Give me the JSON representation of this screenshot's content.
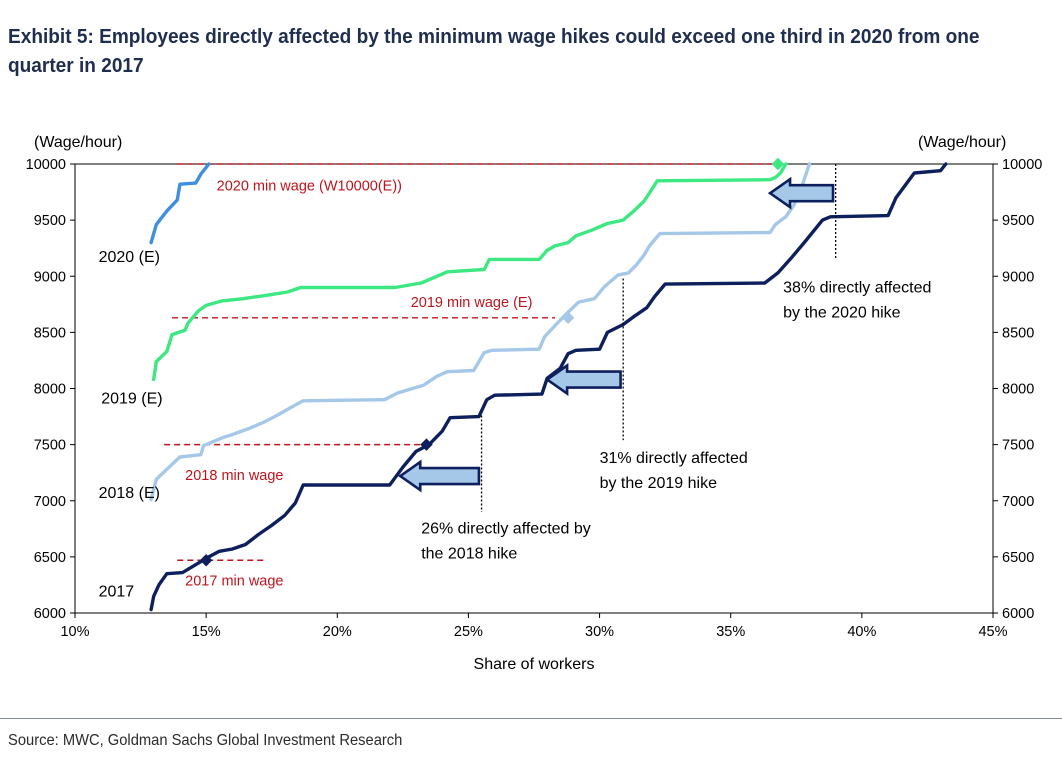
{
  "title": "Exhibit 5: Employees directly affected by the minimum wage hikes could exceed one third in 2020 from one quarter in 2017",
  "source": "Source: MWC, Goldman Sachs Global Investment Research",
  "chart_data": {
    "type": "line",
    "xlabel": "Share of workers",
    "y_unit_left": "(Wage/hour)",
    "y_unit_right": "(Wage/hour)",
    "xlim": [
      10,
      45
    ],
    "ylim": [
      6000,
      10000
    ],
    "x_ticks": [
      10,
      15,
      20,
      25,
      30,
      35,
      40,
      45
    ],
    "x_tick_labels": [
      "10%",
      "15%",
      "20%",
      "25%",
      "30%",
      "35%",
      "40%",
      "45%"
    ],
    "y_ticks": [
      6000,
      6500,
      7000,
      7500,
      8000,
      8500,
      9000,
      9500,
      10000
    ],
    "y_tick_labels": [
      "6000",
      "6500",
      "7000",
      "7500",
      "8000",
      "8500",
      "9000",
      "9500",
      "10000"
    ],
    "grid": false,
    "colors": {
      "s2017": "#0d1f5c",
      "s2018": "#a6c8e8",
      "s2019": "#3de882",
      "s2020": "#3f8fe0",
      "minwage": "#c0141c",
      "annotation": "#000000",
      "arrow_fill": "#a6c8e8",
      "arrow_stroke": "#0d1f5c"
    },
    "series": [
      {
        "name": "2017",
        "color_key": "s2017",
        "points": [
          [
            12.9,
            6030
          ],
          [
            13.0,
            6150
          ],
          [
            13.2,
            6250
          ],
          [
            13.5,
            6350
          ],
          [
            14.1,
            6360
          ],
          [
            14.6,
            6430
          ],
          [
            15.1,
            6500
          ],
          [
            15.5,
            6550
          ],
          [
            16.0,
            6570
          ],
          [
            16.5,
            6610
          ],
          [
            17.0,
            6700
          ],
          [
            17.5,
            6780
          ],
          [
            18.0,
            6870
          ],
          [
            18.4,
            6980
          ],
          [
            18.7,
            7140
          ],
          [
            22.0,
            7140
          ],
          [
            22.5,
            7300
          ],
          [
            23.0,
            7440
          ],
          [
            23.5,
            7500
          ],
          [
            24.0,
            7620
          ],
          [
            24.3,
            7740
          ],
          [
            25.4,
            7750
          ],
          [
            25.7,
            7900
          ],
          [
            26.0,
            7940
          ],
          [
            27.8,
            7950
          ],
          [
            28.0,
            8090
          ],
          [
            28.5,
            8180
          ],
          [
            28.8,
            8310
          ],
          [
            29.1,
            8340
          ],
          [
            30.0,
            8350
          ],
          [
            30.3,
            8500
          ],
          [
            30.9,
            8570
          ],
          [
            31.3,
            8640
          ],
          [
            31.8,
            8720
          ],
          [
            32.1,
            8820
          ],
          [
            32.5,
            8930
          ],
          [
            36.3,
            8940
          ],
          [
            36.8,
            9030
          ],
          [
            37.3,
            9160
          ],
          [
            37.8,
            9300
          ],
          [
            38.5,
            9500
          ],
          [
            38.8,
            9530
          ],
          [
            41.0,
            9540
          ],
          [
            41.3,
            9700
          ],
          [
            42.0,
            9920
          ],
          [
            43.0,
            9940
          ],
          [
            43.2,
            10000
          ]
        ]
      },
      {
        "name": "2018 (E)",
        "color_key": "s2018",
        "points": [
          [
            12.9,
            7010
          ],
          [
            13.1,
            7190
          ],
          [
            13.5,
            7280
          ],
          [
            14.0,
            7390
          ],
          [
            14.8,
            7410
          ],
          [
            14.9,
            7490
          ],
          [
            15.6,
            7560
          ],
          [
            16.0,
            7590
          ],
          [
            16.6,
            7640
          ],
          [
            17.2,
            7700
          ],
          [
            17.7,
            7760
          ],
          [
            18.3,
            7840
          ],
          [
            18.7,
            7890
          ],
          [
            21.8,
            7900
          ],
          [
            22.3,
            7960
          ],
          [
            23.3,
            8030
          ],
          [
            23.8,
            8110
          ],
          [
            24.2,
            8150
          ],
          [
            25.2,
            8160
          ],
          [
            25.6,
            8320
          ],
          [
            25.9,
            8340
          ],
          [
            27.7,
            8350
          ],
          [
            27.9,
            8460
          ],
          [
            28.3,
            8560
          ],
          [
            28.8,
            8680
          ],
          [
            29.2,
            8770
          ],
          [
            29.8,
            8800
          ],
          [
            30.2,
            8910
          ],
          [
            30.7,
            9010
          ],
          [
            31.1,
            9030
          ],
          [
            31.4,
            9100
          ],
          [
            31.7,
            9190
          ],
          [
            31.9,
            9270
          ],
          [
            32.3,
            9380
          ],
          [
            36.5,
            9390
          ],
          [
            36.7,
            9460
          ],
          [
            37.1,
            9530
          ],
          [
            37.4,
            9630
          ],
          [
            37.7,
            9790
          ],
          [
            38.0,
            10000
          ]
        ]
      },
      {
        "name": "2019 (E)",
        "color_key": "s2019",
        "points": [
          [
            13.0,
            8080
          ],
          [
            13.1,
            8240
          ],
          [
            13.5,
            8330
          ],
          [
            13.7,
            8480
          ],
          [
            14.2,
            8520
          ],
          [
            14.3,
            8580
          ],
          [
            14.7,
            8690
          ],
          [
            15.0,
            8740
          ],
          [
            15.6,
            8780
          ],
          [
            16.4,
            8800
          ],
          [
            17.3,
            8830
          ],
          [
            18.1,
            8860
          ],
          [
            18.6,
            8900
          ],
          [
            22.2,
            8900
          ],
          [
            23.2,
            8940
          ],
          [
            24.2,
            9040
          ],
          [
            25.6,
            9060
          ],
          [
            25.8,
            9150
          ],
          [
            27.7,
            9150
          ],
          [
            28.0,
            9230
          ],
          [
            28.3,
            9270
          ],
          [
            28.8,
            9300
          ],
          [
            29.1,
            9360
          ],
          [
            29.7,
            9410
          ],
          [
            30.3,
            9470
          ],
          [
            30.9,
            9500
          ],
          [
            31.3,
            9580
          ],
          [
            31.7,
            9670
          ],
          [
            32.2,
            9850
          ],
          [
            36.5,
            9860
          ],
          [
            36.7,
            9880
          ],
          [
            36.9,
            9920
          ],
          [
            37.1,
            10000
          ]
        ]
      },
      {
        "name": "2020 (E)",
        "color_key": "s2020",
        "points": [
          [
            12.9,
            9300
          ],
          [
            13.1,
            9460
          ],
          [
            13.5,
            9580
          ],
          [
            13.9,
            9680
          ],
          [
            14.0,
            9820
          ],
          [
            14.6,
            9830
          ],
          [
            14.8,
            9910
          ],
          [
            15.1,
            10000
          ]
        ]
      }
    ],
    "min_wage_lines": [
      {
        "label": "2017 min wage",
        "y": 6470,
        "x_range": [
          13.9,
          17.3
        ],
        "marker_x": 15.0,
        "label_x": 14.2,
        "label_y": 6290
      },
      {
        "label": "2018 min wage",
        "y": 7500,
        "x_range": [
          13.4,
          23.5
        ],
        "marker_x": 23.4,
        "label_x": 14.2,
        "label_y": 7230
      },
      {
        "label": "2019 min wage (E)",
        "y": 8630,
        "x_range": [
          13.7,
          28.3
        ],
        "marker_x": 28.8,
        "label_x": 22.8,
        "label_y": 8770
      },
      {
        "label": "2020 min wage (W10000(E))",
        "y": 10000,
        "x_range": [
          13.9,
          37.0
        ],
        "marker_x": 36.8,
        "label_x": 15.4,
        "label_y": 9810
      }
    ],
    "series_labels": [
      {
        "text": "2017",
        "x": 10.9,
        "y": 6200
      },
      {
        "text": "2018 (E)",
        "x": 10.9,
        "y": 7080
      },
      {
        "text": "2019 (E)",
        "x": 11.0,
        "y": 7920
      },
      {
        "text": "2020 (E)",
        "x": 10.9,
        "y": 9180
      }
    ],
    "annotations": [
      {
        "lines": [
          "26% directly affected by",
          "the 2018 hike"
        ],
        "x": 23.2,
        "y": 6760,
        "vline_x": 25.5,
        "vline_range": [
          7760,
          6900
        ],
        "arrow_tip_x": 22.4,
        "arrow_tail_x": 25.4,
        "arrow_y": 7220
      },
      {
        "lines": [
          "31% directly affected",
          "by the 2019 hike"
        ],
        "x": 30.0,
        "y": 7390,
        "vline_x": 30.9,
        "vline_range": [
          8980,
          7540
        ],
        "arrow_tip_x": 28.0,
        "arrow_tail_x": 30.8,
        "arrow_y": 8080
      },
      {
        "lines": [
          "38% directly affected",
          "by the 2020 hike"
        ],
        "x": 37.0,
        "y": 8910,
        "vline_x": 39.0,
        "vline_range": [
          10000,
          9150
        ],
        "arrow_tip_x": 36.5,
        "arrow_tail_x": 38.9,
        "arrow_y": 9740
      }
    ]
  }
}
